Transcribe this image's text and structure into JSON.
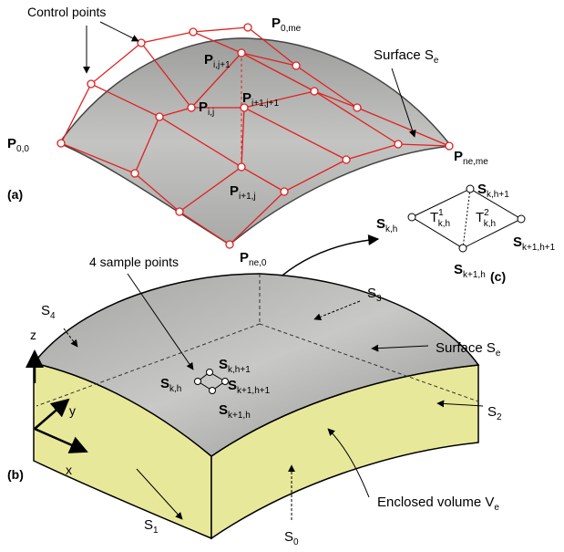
{
  "panel_a": {
    "label": "(a)",
    "callout": "Control points",
    "surface": {
      "name": "Surface S",
      "sub": "e"
    },
    "points": [
      {
        "name": "P",
        "sub": "0,0"
      },
      {
        "name": "P",
        "sub": "0,me"
      },
      {
        "name": "P",
        "sub": "i,j"
      },
      {
        "name": "P",
        "sub": "i,j+1"
      },
      {
        "name": "P",
        "sub": "i+1,j"
      },
      {
        "name": "P",
        "sub": "i+1,j+1"
      },
      {
        "name": "P",
        "sub": "ne,0"
      },
      {
        "name": "P",
        "sub": "ne,me"
      }
    ]
  },
  "panel_b": {
    "label": "(b)",
    "callout": "4 sample points",
    "surface": {
      "name": "Surface S",
      "sub": "e"
    },
    "volume": {
      "name": "Enclosed volume V",
      "sub": "e"
    },
    "faces": [
      {
        "name": "S",
        "sub": "0"
      },
      {
        "name": "S",
        "sub": "1"
      },
      {
        "name": "S",
        "sub": "2"
      },
      {
        "name": "S",
        "sub": "3"
      },
      {
        "name": "S",
        "sub": "4"
      }
    ],
    "axes": [
      "x",
      "y",
      "z"
    ],
    "samples": [
      {
        "name": "S",
        "sub": "k,h"
      },
      {
        "name": "S",
        "sub": "k,h+1"
      },
      {
        "name": "S",
        "sub": "k+1,h"
      },
      {
        "name": "S",
        "sub": "k+1,h+1"
      }
    ]
  },
  "panel_c": {
    "label": "(c)",
    "samples": [
      {
        "name": "S",
        "sub": "k,h"
      },
      {
        "name": "S",
        "sub": "k,h+1"
      },
      {
        "name": "S",
        "sub": "k+1,h"
      },
      {
        "name": "S",
        "sub": "k+1,h+1"
      }
    ],
    "triangles": [
      {
        "name": "T",
        "sup": "1",
        "sub": "k,h"
      },
      {
        "name": "T",
        "sup": "2",
        "sub": "k,h"
      }
    ]
  }
}
